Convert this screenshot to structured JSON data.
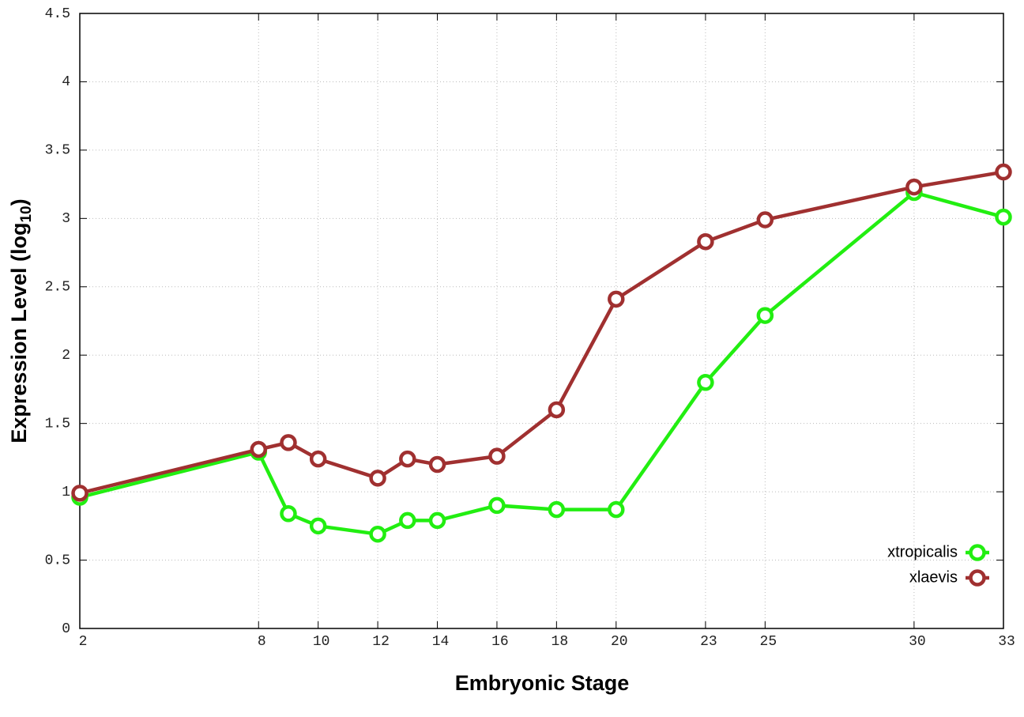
{
  "chart_data": {
    "type": "line",
    "x_label": "Embryonic Stage",
    "y_label": {
      "text": "Expression Level (log",
      "subscript": "10",
      "suffix": ")"
    },
    "x": [
      2,
      8,
      9,
      10,
      12,
      13,
      14,
      16,
      18,
      20,
      23,
      25,
      30,
      33
    ],
    "series": [
      {
        "name": "xtropicalis",
        "color": "#22ee11",
        "values": [
          0.96,
          1.29,
          0.84,
          0.75,
          0.69,
          0.79,
          0.79,
          0.9,
          0.87,
          0.87,
          1.8,
          2.29,
          3.19,
          3.01
        ]
      },
      {
        "name": "xlaevis",
        "color": "#a03030",
        "values": [
          0.99,
          1.31,
          1.36,
          1.24,
          1.1,
          1.24,
          1.2,
          1.26,
          1.6,
          2.41,
          2.83,
          2.99,
          3.23,
          3.34
        ]
      }
    ],
    "xlim": [
      2,
      33
    ],
    "xticks": [
      2,
      8,
      10,
      12,
      14,
      16,
      18,
      20,
      23,
      25,
      30,
      33
    ],
    "ylim": [
      0,
      4.5
    ],
    "yticks": [
      0,
      0.5,
      1,
      1.5,
      2,
      2.5,
      3,
      3.5,
      4,
      4.5
    ],
    "grid": true,
    "legend_position": "lower right"
  }
}
